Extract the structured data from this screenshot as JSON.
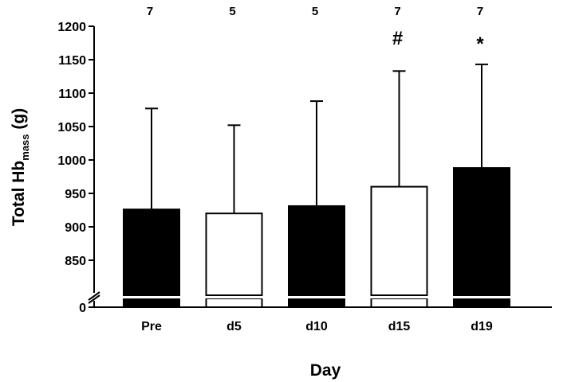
{
  "chart_data": {
    "type": "bar",
    "ylabel_main": "Total Hb",
    "ylabel_sub": "mass",
    "ylabel_unit": " (g)",
    "xlabel": "Day",
    "ylim": [
      800,
      1200
    ],
    "yticks": [
      "1200",
      "1150",
      "1100",
      "1050",
      "1000",
      "950",
      "900",
      "850",
      "0"
    ],
    "ytick_values": [
      1200,
      1150,
      1100,
      1050,
      1000,
      950,
      900,
      850,
      0
    ],
    "categories": [
      "Pre",
      "d5",
      "d10",
      "d15",
      "d19"
    ],
    "values": [
      926,
      920,
      931,
      960,
      988
    ],
    "error_upper": [
      1077,
      1052,
      1088,
      1133,
      1143
    ],
    "sample_sizes": [
      "7",
      "5",
      "5",
      "7",
      "7"
    ],
    "significance": [
      "",
      "",
      "",
      "#",
      "*"
    ],
    "fills": [
      "#000000",
      "#ffffff",
      "#000000",
      "#ffffff",
      "#000000"
    ],
    "axis_break": true
  }
}
